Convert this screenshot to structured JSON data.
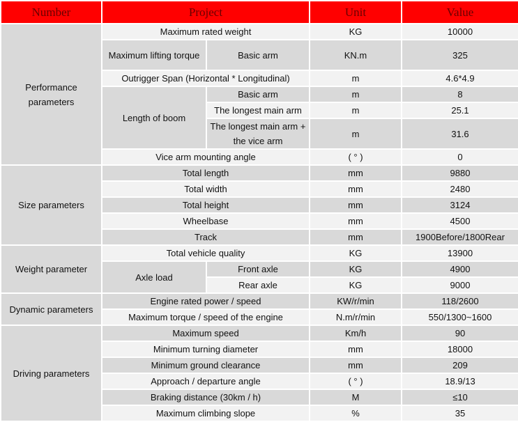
{
  "header": {
    "number": "Number",
    "project": "Project",
    "unit": "Unit",
    "value": "Value"
  },
  "colors": {
    "header_bg": "#ff0000",
    "header_text": "#6a0000",
    "row_light": "#f2f2f2",
    "row_dark": "#d9d9d9"
  },
  "groups": [
    {
      "name": "Performance parameters",
      "items": [
        {
          "project": "Maximum rated weight",
          "unit": "KG",
          "value": "10000"
        },
        {
          "project": "Maximum lifting torque",
          "sub": [
            {
              "label": "Basic arm",
              "unit": "KN.m",
              "value": "325",
              "tall": true
            }
          ]
        },
        {
          "project": "Outrigger Span (Horizontal * Longitudinal)",
          "unit": "m",
          "value": "4.6*4.9"
        },
        {
          "project": "Length of boom",
          "sub": [
            {
              "label": "Basic arm",
              "unit": "m",
              "value": "8"
            },
            {
              "label": "The longest main arm",
              "unit": "m",
              "value": "25.1"
            },
            {
              "label": "The longest main arm + the vice arm",
              "unit": "m",
              "value": "31.6",
              "tall": true
            }
          ]
        },
        {
          "project": "Vice arm mounting angle",
          "unit": "( ° )",
          "value": "0"
        }
      ]
    },
    {
      "name": "Size parameters",
      "items": [
        {
          "project": "Total length",
          "unit": "mm",
          "value": "9880"
        },
        {
          "project": "Total width",
          "unit": "mm",
          "value": "2480"
        },
        {
          "project": "Total height",
          "unit": "mm",
          "value": "3124"
        },
        {
          "project": "Wheelbase",
          "unit": "mm",
          "value": "4500"
        },
        {
          "project": "Track",
          "unit": "mm",
          "value": "1900Before/1800Rear"
        }
      ]
    },
    {
      "name": "Weight parameter",
      "items": [
        {
          "project": "Total vehicle quality",
          "unit": "KG",
          "value": "13900"
        },
        {
          "project": "Axle load",
          "sub": [
            {
              "label": "Front axle",
              "unit": "KG",
              "value": "4900"
            },
            {
              "label": "Rear axle",
              "unit": "KG",
              "value": "9000"
            }
          ]
        }
      ]
    },
    {
      "name": "Dynamic parameters",
      "items": [
        {
          "project": "Engine rated power / speed",
          "unit": "KW/r/min",
          "value": "118/2600"
        },
        {
          "project": "Maximum torque / speed of the engine",
          "unit": "N.m/r/min",
          "value": "550/1300~1600"
        }
      ]
    },
    {
      "name": "Driving parameters",
      "items": [
        {
          "project": "Maximum speed",
          "unit": "Km/h",
          "value": "90"
        },
        {
          "project": "Minimum turning diameter",
          "unit": "mm",
          "value": "18000"
        },
        {
          "project": "Minimum ground clearance",
          "unit": "mm",
          "value": "209"
        },
        {
          "project": "Approach / departure angle",
          "unit": "( ° )",
          "value": "18.9/13"
        },
        {
          "project": "Braking distance (30km / h)",
          "unit": "M",
          "value": "≤10"
        },
        {
          "project": "Maximum climbing slope",
          "unit": "%",
          "value": "35"
        }
      ]
    }
  ]
}
